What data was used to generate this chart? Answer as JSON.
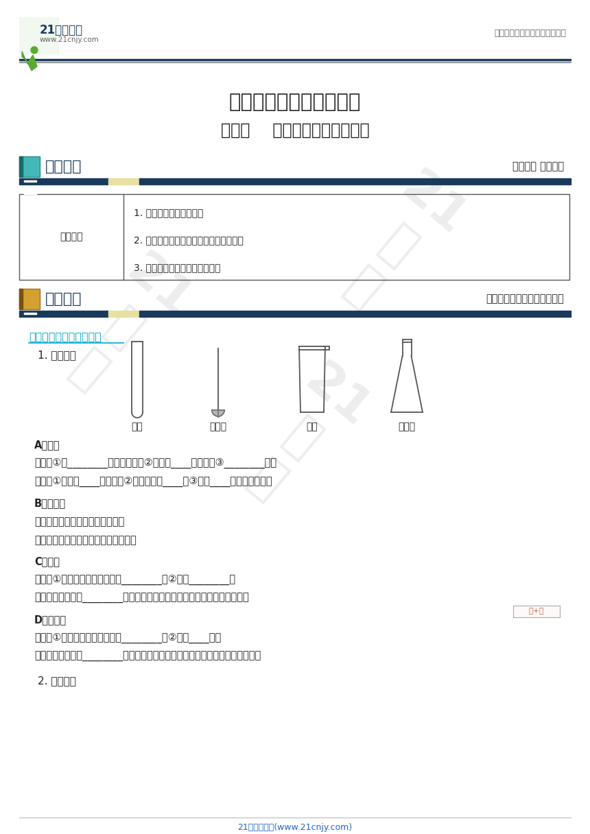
{
  "bg_color": "#ffffff",
  "title1": "九年级化学暑假衔接讲义",
  "title2": "第三讲    认识化学仪器（原卷）",
  "header_right": "中小学教育资源及组卷应用平台",
  "logo_21": "21世纪教育",
  "logo_url": "www.21cnjy.com",
  "section1_title": "课程要求",
  "section1_right": "了解要求 心中有数",
  "table_left_label": "课程要求",
  "table_items": [
    "1. 知道常见仪器的名称；",
    "2. 了解常见仪器的用途和使用注意事项；",
    "3. 能对常见仪器进行简单分类。"
  ],
  "section2_title": "基础知识",
  "section2_right": "夯实基础，建立完整知识体系",
  "subsection_title": "物理变化常见的化学仪器",
  "sub1": "1. 反应容器",
  "instrument_labels": [
    "试管",
    "燃烧匙",
    "烧杯",
    "锥形瓶"
  ],
  "partA_title": "A、试管",
  "partA_use": "用途：①作________的反应容器；②常温或____时使用；③________气体",
  "partA_note": "注意：①加热时____应干燥；②热试管不能____；③加热____时不超过其容积",
  "partB_title": "B、燃烧匙",
  "partB_use": "用途：用于支持可燃性固体物质的",
  "partB_note": "注意：防止接触酸、碱、盐等化学试剂",
  "partC_title": "C、烧杯",
  "partC_use": "用途：①用于较多量液体试剂的________；②用于________或",
  "partC_note": "注意：加热时要垫________（保证烧杯受热均匀，防止局部受热炸裂烧杯）",
  "partD_title": "D、锥形瓶",
  "partD_use": "用途：①用于较多量液体试剂的________；②用于____实验",
  "partD_note": "注意：加热时要垫________（确保锥形瓶受热均匀，防止局部受热炸裂锥形瓶）",
  "sub2": "2. 贮存仪器",
  "footer": "21世纪教育网(www.21cnjy.com)",
  "dark_blue": "#1a3a5c",
  "cyan_blue": "#00aacc",
  "light_yellow": "#e8e0a0",
  "table_border": "#555555",
  "text_color": "#222222",
  "footer_color": "#2266cc",
  "annot_color": "#cc6644"
}
